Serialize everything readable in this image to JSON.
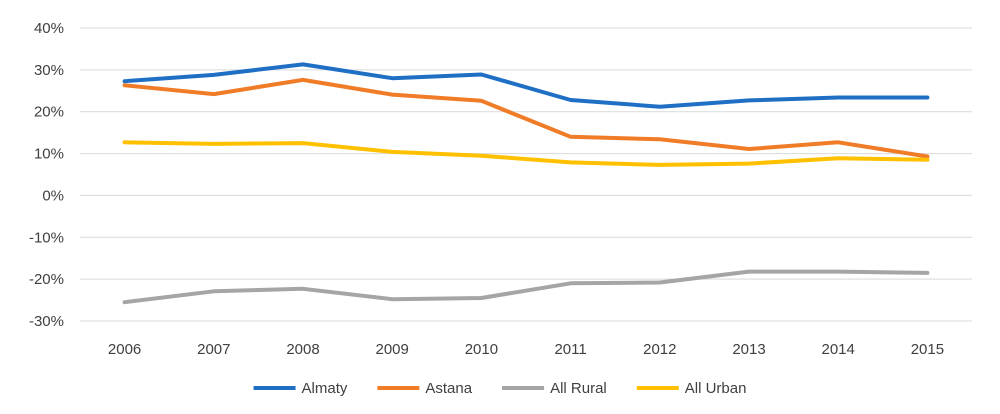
{
  "chart_data": {
    "type": "line",
    "title": "",
    "xlabel": "",
    "ylabel": "",
    "x": [
      "2006",
      "2007",
      "2008",
      "2009",
      "2010",
      "2011",
      "2012",
      "2013",
      "2014",
      "2015"
    ],
    "y_ticks": [
      "40%",
      "30%",
      "20%",
      "10%",
      "0%",
      "-10%",
      "-20%",
      "-30%"
    ],
    "y_tick_values": [
      40,
      30,
      20,
      10,
      0,
      -10,
      -20,
      -30
    ],
    "ylim": [
      -30,
      40
    ],
    "grid": "horizontal",
    "legend_position": "bottom",
    "series": [
      {
        "name": "Almaty",
        "color": "#1f6fc5",
        "values": [
          27.3,
          28.8,
          31.3,
          28.0,
          28.9,
          22.8,
          21.2,
          22.7,
          23.4,
          23.4
        ]
      },
      {
        "name": "Astana",
        "color": "#f07c28",
        "values": [
          26.3,
          24.2,
          27.6,
          24.1,
          22.6,
          14.0,
          13.4,
          11.1,
          12.7,
          9.3
        ]
      },
      {
        "name": "All Rural",
        "color": "#a5a5a5",
        "values": [
          -25.5,
          -22.9,
          -22.3,
          -24.8,
          -24.5,
          -21.0,
          -20.8,
          -18.2,
          -18.2,
          -18.5
        ]
      },
      {
        "name": "All Urban",
        "color": "#ffc000",
        "values": [
          12.7,
          12.3,
          12.5,
          10.4,
          9.5,
          7.9,
          7.3,
          7.6,
          8.9,
          8.5
        ]
      }
    ]
  }
}
